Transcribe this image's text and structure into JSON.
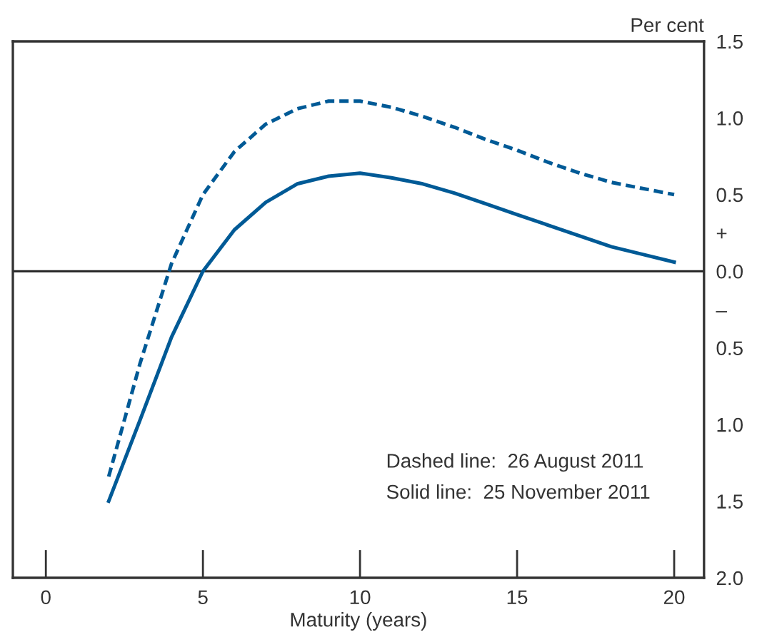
{
  "chart_data": {
    "type": "line",
    "xlabel": "Maturity (years)",
    "ylabel": "Per cent",
    "x": [
      2,
      3,
      4,
      5,
      6,
      7,
      8,
      9,
      10,
      11,
      12,
      13,
      14,
      15,
      16,
      17,
      18,
      19,
      20
    ],
    "series": [
      {
        "color": "#005a96",
        "line_style": "dashed",
        "values": [
          -1.34,
          -0.6,
          0.05,
          0.5,
          0.78,
          0.96,
          1.06,
          1.11,
          1.11,
          1.07,
          1.01,
          0.94,
          0.86,
          0.79,
          0.71,
          0.64,
          0.58,
          0.54,
          0.5
        ]
      },
      {
        "color": "#005a96",
        "line_style": "solid",
        "values": [
          -1.5,
          -0.97,
          -0.43,
          0.0,
          0.27,
          0.45,
          0.57,
          0.62,
          0.64,
          0.61,
          0.57,
          0.51,
          0.44,
          0.37,
          0.3,
          0.23,
          0.16,
          0.11,
          0.06
        ]
      }
    ],
    "xlim": [
      -1.05,
      20.95
    ],
    "xticks": [
      0,
      5,
      10,
      15,
      20
    ],
    "ylim": [
      -2.0,
      1.5
    ],
    "yticks": [
      {
        "value": 1.5,
        "label": "1.5"
      },
      {
        "value": 1.0,
        "label": "1.0"
      },
      {
        "value": 0.5,
        "label": "0.5"
      },
      {
        "value": 0.25,
        "label": "+"
      },
      {
        "value": 0.0,
        "label": "0.0"
      },
      {
        "value": -0.25,
        "label": "–"
      },
      {
        "value": -0.5,
        "label": "0.5"
      },
      {
        "value": -1.0,
        "label": "1.0"
      },
      {
        "value": -1.5,
        "label": "1.5"
      },
      {
        "value": -2.0,
        "label": "2.0"
      }
    ],
    "ref_lines": [
      {
        "axis": "y",
        "value": 0,
        "color": "#222222"
      }
    ],
    "annotations": [
      "Dashed line:  26 August 2011",
      "Solid line:  25 November 2011"
    ],
    "grid": false,
    "legend": false,
    "marker": "none"
  }
}
